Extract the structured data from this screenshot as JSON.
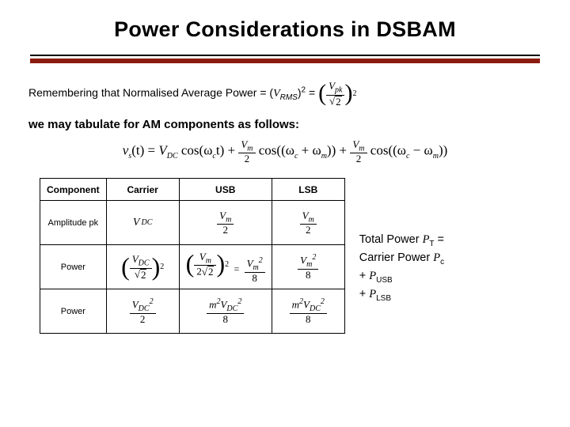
{
  "title": "Power Considerations in DSBAM",
  "intro1_prefix": "Remembering that Normalised Average Power = (",
  "vrms_V": "V",
  "vrms_sub": "RMS",
  "intro1_mid": ")",
  "intro1_sup": "2",
  "intro1_suffix": " = ",
  "rms_frac_num": "V",
  "rms_frac_num_sub": "pk",
  "rms_frac_den_rad": "2",
  "rms_outer_sup": "2",
  "intro2": "we may tabulate for AM components as follows:",
  "equation": "vₛ(t) = V_DC cos(ω_c t) + (V_m/2) cos((ω_c + ω_m)) + (V_m/2) cos((ω_c − ω_m))",
  "eq_vs": "v",
  "eq_s": "s",
  "eq_t": "(t) = ",
  "eq_vdc_V": "V",
  "eq_vdc_sub": "DC",
  "eq_cos1": " cos(ω",
  "eq_c": "c",
  "eq_t2": "t) + ",
  "eq_vm_V": "V",
  "eq_m": "m",
  "eq_two": "2",
  "eq_cos2a": " cos((ω",
  "eq_plus": " + ω",
  "eq_close": ")) + ",
  "eq_cos3a": " cos((ω",
  "eq_minus": " − ω",
  "eq_close2": "))",
  "table": {
    "headers": [
      "Component",
      "Carrier",
      "USB",
      "LSB"
    ],
    "row_labels": [
      "Amplitude pk",
      "Power",
      "Power"
    ],
    "carrier_amp_V": "V",
    "carrier_amp_sub": "DC",
    "usb_amp_num_V": "V",
    "usb_amp_num_sub": "m",
    "usb_amp_den": "2",
    "lsb_amp_num_V": "V",
    "lsb_amp_num_sub": "m",
    "lsb_amp_den": "2",
    "p1_carrier_frac_num_V": "V",
    "p1_carrier_frac_num_sub": "DC",
    "p1_carrier_frac_den_rad": "2",
    "p1_carrier_outer_sup": "2",
    "p1_usb_frac_num_V": "V",
    "p1_usb_frac_num_sub": "m",
    "p1_usb_frac_den": "2",
    "p1_usb_frac_den_rad": "2",
    "p1_usb_outer_sup": "2",
    "p1_usb_eq_num_V": "V",
    "p1_usb_eq_num_sub": "m",
    "p1_usb_eq_num_sup": "2",
    "p1_usb_eq_den": "8",
    "p1_lsb_num_V": "V",
    "p1_lsb_num_sub": "m",
    "p1_lsb_num_sup": "2",
    "p1_lsb_den": "8",
    "p2_carrier_num_V": "V",
    "p2_carrier_num_sub": "DC",
    "p2_carrier_num_sup": "2",
    "p2_carrier_den": "2",
    "p2_usb_num_m": "m",
    "p2_usb_num_sup1": "2",
    "p2_usb_num_V": "V",
    "p2_usb_num_sub": "DC",
    "p2_usb_num_sup2": "2",
    "p2_usb_den": "8",
    "p2_lsb_num_m": "m",
    "p2_lsb_num_sup1": "2",
    "p2_lsb_num_V": "V",
    "p2_lsb_num_sub": "DC",
    "p2_lsb_num_sup2": "2",
    "p2_lsb_den": "8"
  },
  "side": {
    "line1_a": "Total Power ",
    "line1_P": "P",
    "line1_T": "T",
    "line1_eq": " = Carrier Power ",
    "line1_Pc_P": "P",
    "line1_Pc_c": "c",
    "line2_plus": "+ ",
    "line2_P": "P",
    "line2_USB": "USB",
    "line3_plus": "+ ",
    "line3_P": "P",
    "line3_LSB": "LSB"
  },
  "colors": {
    "accent_rule": "#8b1a0f",
    "text": "#000000",
    "background": "#ffffff",
    "border": "#000000"
  }
}
